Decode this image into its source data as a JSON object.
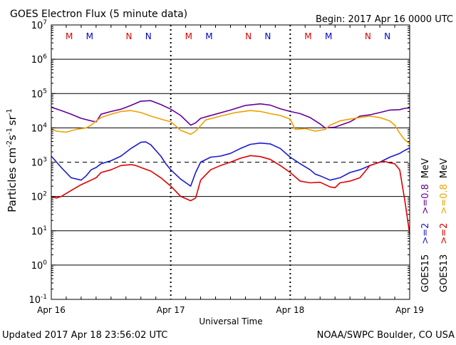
{
  "header": {
    "title": "GOES Electron Flux (5 minute data)",
    "begin": "Begin: 2017 Apr 16 0000 UTC"
  },
  "footer": {
    "updated": "Updated 2017 Apr 18 23:56:02 UTC",
    "source": "NOAA/SWPC Boulder, CO USA"
  },
  "chart_data": {
    "type": "line",
    "xlabel": "Universal Time",
    "ylabel": {
      "base": "Particles cm",
      "e1": "-2",
      "mid1": "s",
      "e2": "-1",
      "mid2": "sr",
      "e3": "-1"
    },
    "x_ticks": [
      "Apr 16",
      "Apr 17",
      "Apr 18",
      "Apr 19"
    ],
    "x_range_hours": [
      0,
      72
    ],
    "y_scale": "log",
    "ylim": [
      0.1,
      10000000
    ],
    "y_ticks": [
      {
        "base": "10",
        "exp": "7"
      },
      {
        "base": "10",
        "exp": "6"
      },
      {
        "base": "10",
        "exp": "5"
      },
      {
        "base": "10",
        "exp": "4"
      },
      {
        "base": "10",
        "exp": "3"
      },
      {
        "base": "10",
        "exp": "2"
      },
      {
        "base": "10",
        "exp": "1"
      },
      {
        "base": "10",
        "exp": "0"
      },
      {
        "base": "10",
        "exp": "-1"
      }
    ],
    "threshold_line": 1000,
    "grid": "horizontal",
    "mn_markers": [
      {
        "label": "M",
        "hour": 3.6,
        "color": "#dd0000"
      },
      {
        "label": "M",
        "hour": 7.7,
        "color": "#0000cc"
      },
      {
        "label": "N",
        "hour": 15.6,
        "color": "#dd0000"
      },
      {
        "label": "N",
        "hour": 19.5,
        "color": "#0000cc"
      },
      {
        "label": "M",
        "hour": 27.6,
        "color": "#dd0000"
      },
      {
        "label": "M",
        "hour": 31.7,
        "color": "#0000cc"
      },
      {
        "label": "N",
        "hour": 39.6,
        "color": "#dd0000"
      },
      {
        "label": "N",
        "hour": 43.5,
        "color": "#0000cc"
      },
      {
        "label": "M",
        "hour": 51.6,
        "color": "#dd0000"
      },
      {
        "label": "M",
        "hour": 55.7,
        "color": "#0000cc"
      },
      {
        "label": "N",
        "hour": 63.6,
        "color": "#dd0000"
      },
      {
        "label": "N",
        "hour": 67.5,
        "color": "#0000cc"
      }
    ],
    "legend": {
      "placement": "right",
      "entries": [
        {
          "sat": "GOES15",
          "label": ">=2",
          "unit": "MeV",
          "color": "#1a1acc"
        },
        {
          "sat": "GOES15",
          "label": ">=0.8",
          "unit": "MeV",
          "color": "#660099"
        },
        {
          "sat": "GOES13",
          "label": ">=2",
          "unit": "MeV",
          "color": "#dd0000"
        },
        {
          "sat": "GOES13",
          "label": ">=0.8",
          "unit": "MeV",
          "color": "#f0a000"
        }
      ]
    },
    "series": [
      {
        "name": "GOES15 >=0.8 MeV",
        "color": "#660099",
        "x": [
          0,
          2,
          4,
          6,
          8,
          9,
          10,
          12,
          14,
          16,
          18,
          20,
          22,
          24,
          26,
          28,
          29,
          30,
          33,
          36,
          39,
          42,
          44,
          46,
          48,
          50,
          52,
          54,
          55,
          57,
          60,
          62,
          64,
          66,
          68,
          70,
          71,
          72
        ],
        "y": [
          40000,
          32000,
          25000,
          19000,
          16000,
          15000,
          25000,
          30000,
          35000,
          45000,
          60000,
          62000,
          48000,
          35000,
          23000,
          12000,
          14000,
          19000,
          25000,
          33000,
          45000,
          50000,
          46000,
          36000,
          30000,
          26000,
          20000,
          13000,
          10000,
          10500,
          15000,
          22000,
          24000,
          28000,
          33000,
          34000,
          37000,
          38000
        ]
      },
      {
        "name": "GOES13 >=0.8 MeV",
        "color": "#f0a000",
        "x": [
          0,
          1,
          3,
          5,
          7,
          8,
          9,
          10,
          12,
          14,
          16,
          18,
          20,
          22,
          24,
          26,
          28,
          29,
          31,
          34,
          37,
          40,
          42,
          44,
          46,
          48,
          49,
          51,
          53,
          55,
          56,
          58,
          60,
          62,
          64,
          66,
          68,
          69,
          70,
          71,
          72
        ],
        "y": [
          9500,
          8000,
          7500,
          9000,
          10000,
          12000,
          16000,
          20000,
          25000,
          30000,
          32000,
          28000,
          22000,
          18000,
          15000,
          8500,
          6500,
          8000,
          17000,
          22000,
          28000,
          32000,
          30000,
          26000,
          23000,
          18000,
          9000,
          9500,
          8000,
          9000,
          12000,
          16000,
          18000,
          20000,
          22000,
          20000,
          16000,
          12000,
          7000,
          4500,
          3500
        ]
      },
      {
        "name": "GOES15 >=2 MeV",
        "color": "#1a1acc",
        "x": [
          0,
          2,
          4,
          6,
          7,
          8,
          9,
          10,
          12,
          14,
          16,
          18,
          19,
          20,
          22,
          23,
          24,
          26,
          28,
          29,
          30,
          32,
          34,
          36,
          38,
          40,
          42,
          44,
          46,
          48,
          50,
          52,
          53,
          54,
          56,
          58,
          60,
          62,
          64,
          66,
          68,
          70,
          71,
          72
        ],
        "y": [
          1500,
          700,
          350,
          300,
          400,
          600,
          700,
          900,
          1100,
          1500,
          2500,
          3800,
          3900,
          3200,
          1500,
          900,
          600,
          320,
          200,
          500,
          1000,
          1400,
          1500,
          1800,
          2500,
          3300,
          3600,
          3400,
          2500,
          1400,
          900,
          600,
          450,
          400,
          300,
          350,
          500,
          600,
          800,
          1000,
          1400,
          1800,
          2200,
          2600
        ]
      },
      {
        "name": "GOES13 >=2 MeV",
        "color": "#dd0000",
        "x": [
          0,
          1,
          2,
          4,
          6,
          8,
          9,
          10,
          12,
          14,
          16,
          17,
          18,
          20,
          22,
          24,
          26,
          28,
          29,
          30,
          32,
          34,
          36,
          38,
          40,
          42,
          44,
          46,
          48,
          50,
          52,
          54,
          56,
          57,
          58,
          60,
          62,
          64,
          66,
          67,
          68,
          69,
          70,
          71,
          72
        ],
        "y": [
          100,
          90,
          100,
          150,
          220,
          300,
          350,
          500,
          600,
          800,
          850,
          800,
          700,
          550,
          350,
          200,
          100,
          75,
          90,
          300,
          600,
          800,
          1000,
          1300,
          1550,
          1450,
          1200,
          800,
          500,
          280,
          250,
          260,
          190,
          180,
          250,
          280,
          350,
          800,
          1000,
          1050,
          950,
          900,
          600,
          80,
          8
        ]
      }
    ]
  }
}
